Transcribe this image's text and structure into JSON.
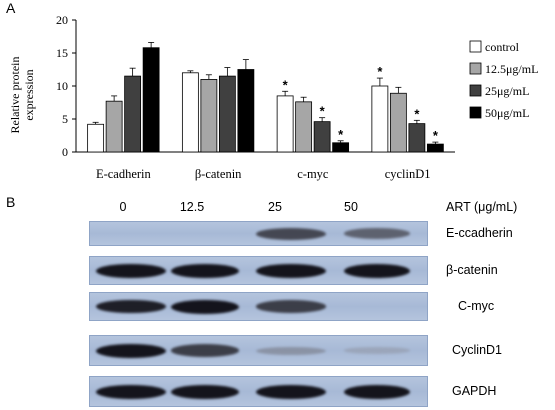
{
  "panels": {
    "a": "A",
    "b": "B"
  },
  "chart_data": {
    "type": "bar",
    "ylabel": "Relative protein\nexpression",
    "ylim": [
      0,
      20
    ],
    "yticks": [
      0,
      5,
      10,
      15,
      20
    ],
    "categories": [
      "E-cadherin",
      "β-catenin",
      "c-myc",
      "cyclinD1"
    ],
    "series": [
      {
        "name": "control",
        "color": "#ffffff",
        "values": [
          4.2,
          12.0,
          8.5,
          10.0
        ],
        "errors": [
          0.3,
          0.3,
          0.7,
          1.2
        ]
      },
      {
        "name": "12.5μg/mL",
        "color": "#a6a6a6",
        "values": [
          7.7,
          11.0,
          7.6,
          8.9
        ],
        "errors": [
          0.8,
          0.7,
          0.7,
          0.9
        ]
      },
      {
        "name": "25μg/mL",
        "color": "#404040",
        "values": [
          11.5,
          11.5,
          4.6,
          4.3
        ],
        "errors": [
          1.2,
          1.3,
          0.6,
          0.5
        ]
      },
      {
        "name": "50μg/mL",
        "color": "#000000",
        "values": [
          15.8,
          12.5,
          1.4,
          1.2
        ],
        "errors": [
          0.8,
          1.5,
          0.3,
          0.3
        ]
      }
    ],
    "significance": [
      [
        false,
        false,
        true,
        true
      ],
      [
        false,
        false,
        false,
        false
      ],
      [
        false,
        false,
        true,
        true
      ],
      [
        false,
        false,
        true,
        true
      ]
    ],
    "significance_marker": "*",
    "legend_position": "right"
  },
  "blot": {
    "header": "ART (μg/mL)",
    "doses": [
      "0",
      "12.5",
      "25",
      "50"
    ],
    "rows": [
      {
        "label": "E-ccadherin",
        "intensities": [
          0.0,
          0.0,
          0.75,
          0.6
        ]
      },
      {
        "label": "β-catenin",
        "intensities": [
          1.0,
          1.0,
          1.0,
          1.0
        ]
      },
      {
        "label": "C-myc",
        "intensities": [
          0.95,
          1.0,
          0.8,
          0.0
        ]
      },
      {
        "label": "CyclinD1",
        "intensities": [
          1.0,
          0.8,
          0.25,
          0.05
        ]
      },
      {
        "label": "GAPDH",
        "intensities": [
          1.0,
          1.0,
          1.0,
          1.0
        ]
      }
    ]
  }
}
